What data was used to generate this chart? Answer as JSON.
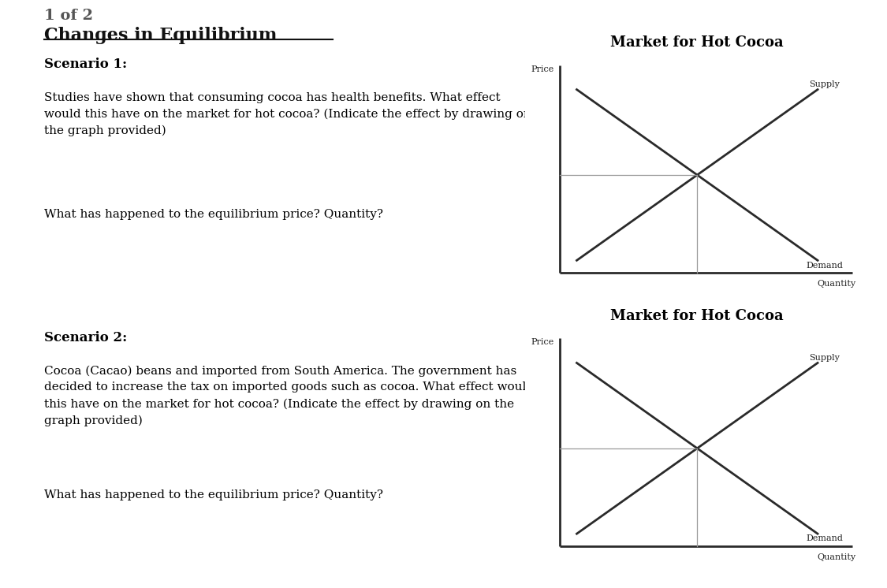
{
  "title": "Changes in Equilibrium",
  "page_bg": "#ffffff",
  "graph_title": "Market for Hot Cocoa",
  "price_label": "Price",
  "quantity_label": "Quantity",
  "supply_label": "Supply",
  "demand_label": "Demand",
  "scenario1_bold": "Scenario 1:",
  "scenario1_text": "Studies have shown that consuming cocoa has health benefits. What effect\nwould this have on the market for hot cocoa? (Indicate the effect by drawing on\nthe graph provided)",
  "scenario1_question": "What has happened to the equilibrium price? Quantity?",
  "scenario2_bold": "Scenario 2:",
  "scenario2_text": "Cocoa (Cacao) beans and imported from South America. The government has\ndecided to increase the tax on imported goods such as cocoa. What effect would\nthis have on the market for hot cocoa? (Indicate the effect by drawing on the\ngraph provided)",
  "scenario2_question": "What has happened to the equilibrium price? Quantity?",
  "header_text": "1 of 2",
  "line_color": "#2a2a2a",
  "axis_color": "#2a2a2a",
  "equilibrium_line_color": "#999999",
  "font_size_title": 16,
  "font_size_graph_title": 13,
  "font_size_axis_label": 8,
  "font_size_curve_label": 8,
  "font_size_text": 11,
  "font_size_scenario_bold": 12,
  "font_size_header": 14
}
